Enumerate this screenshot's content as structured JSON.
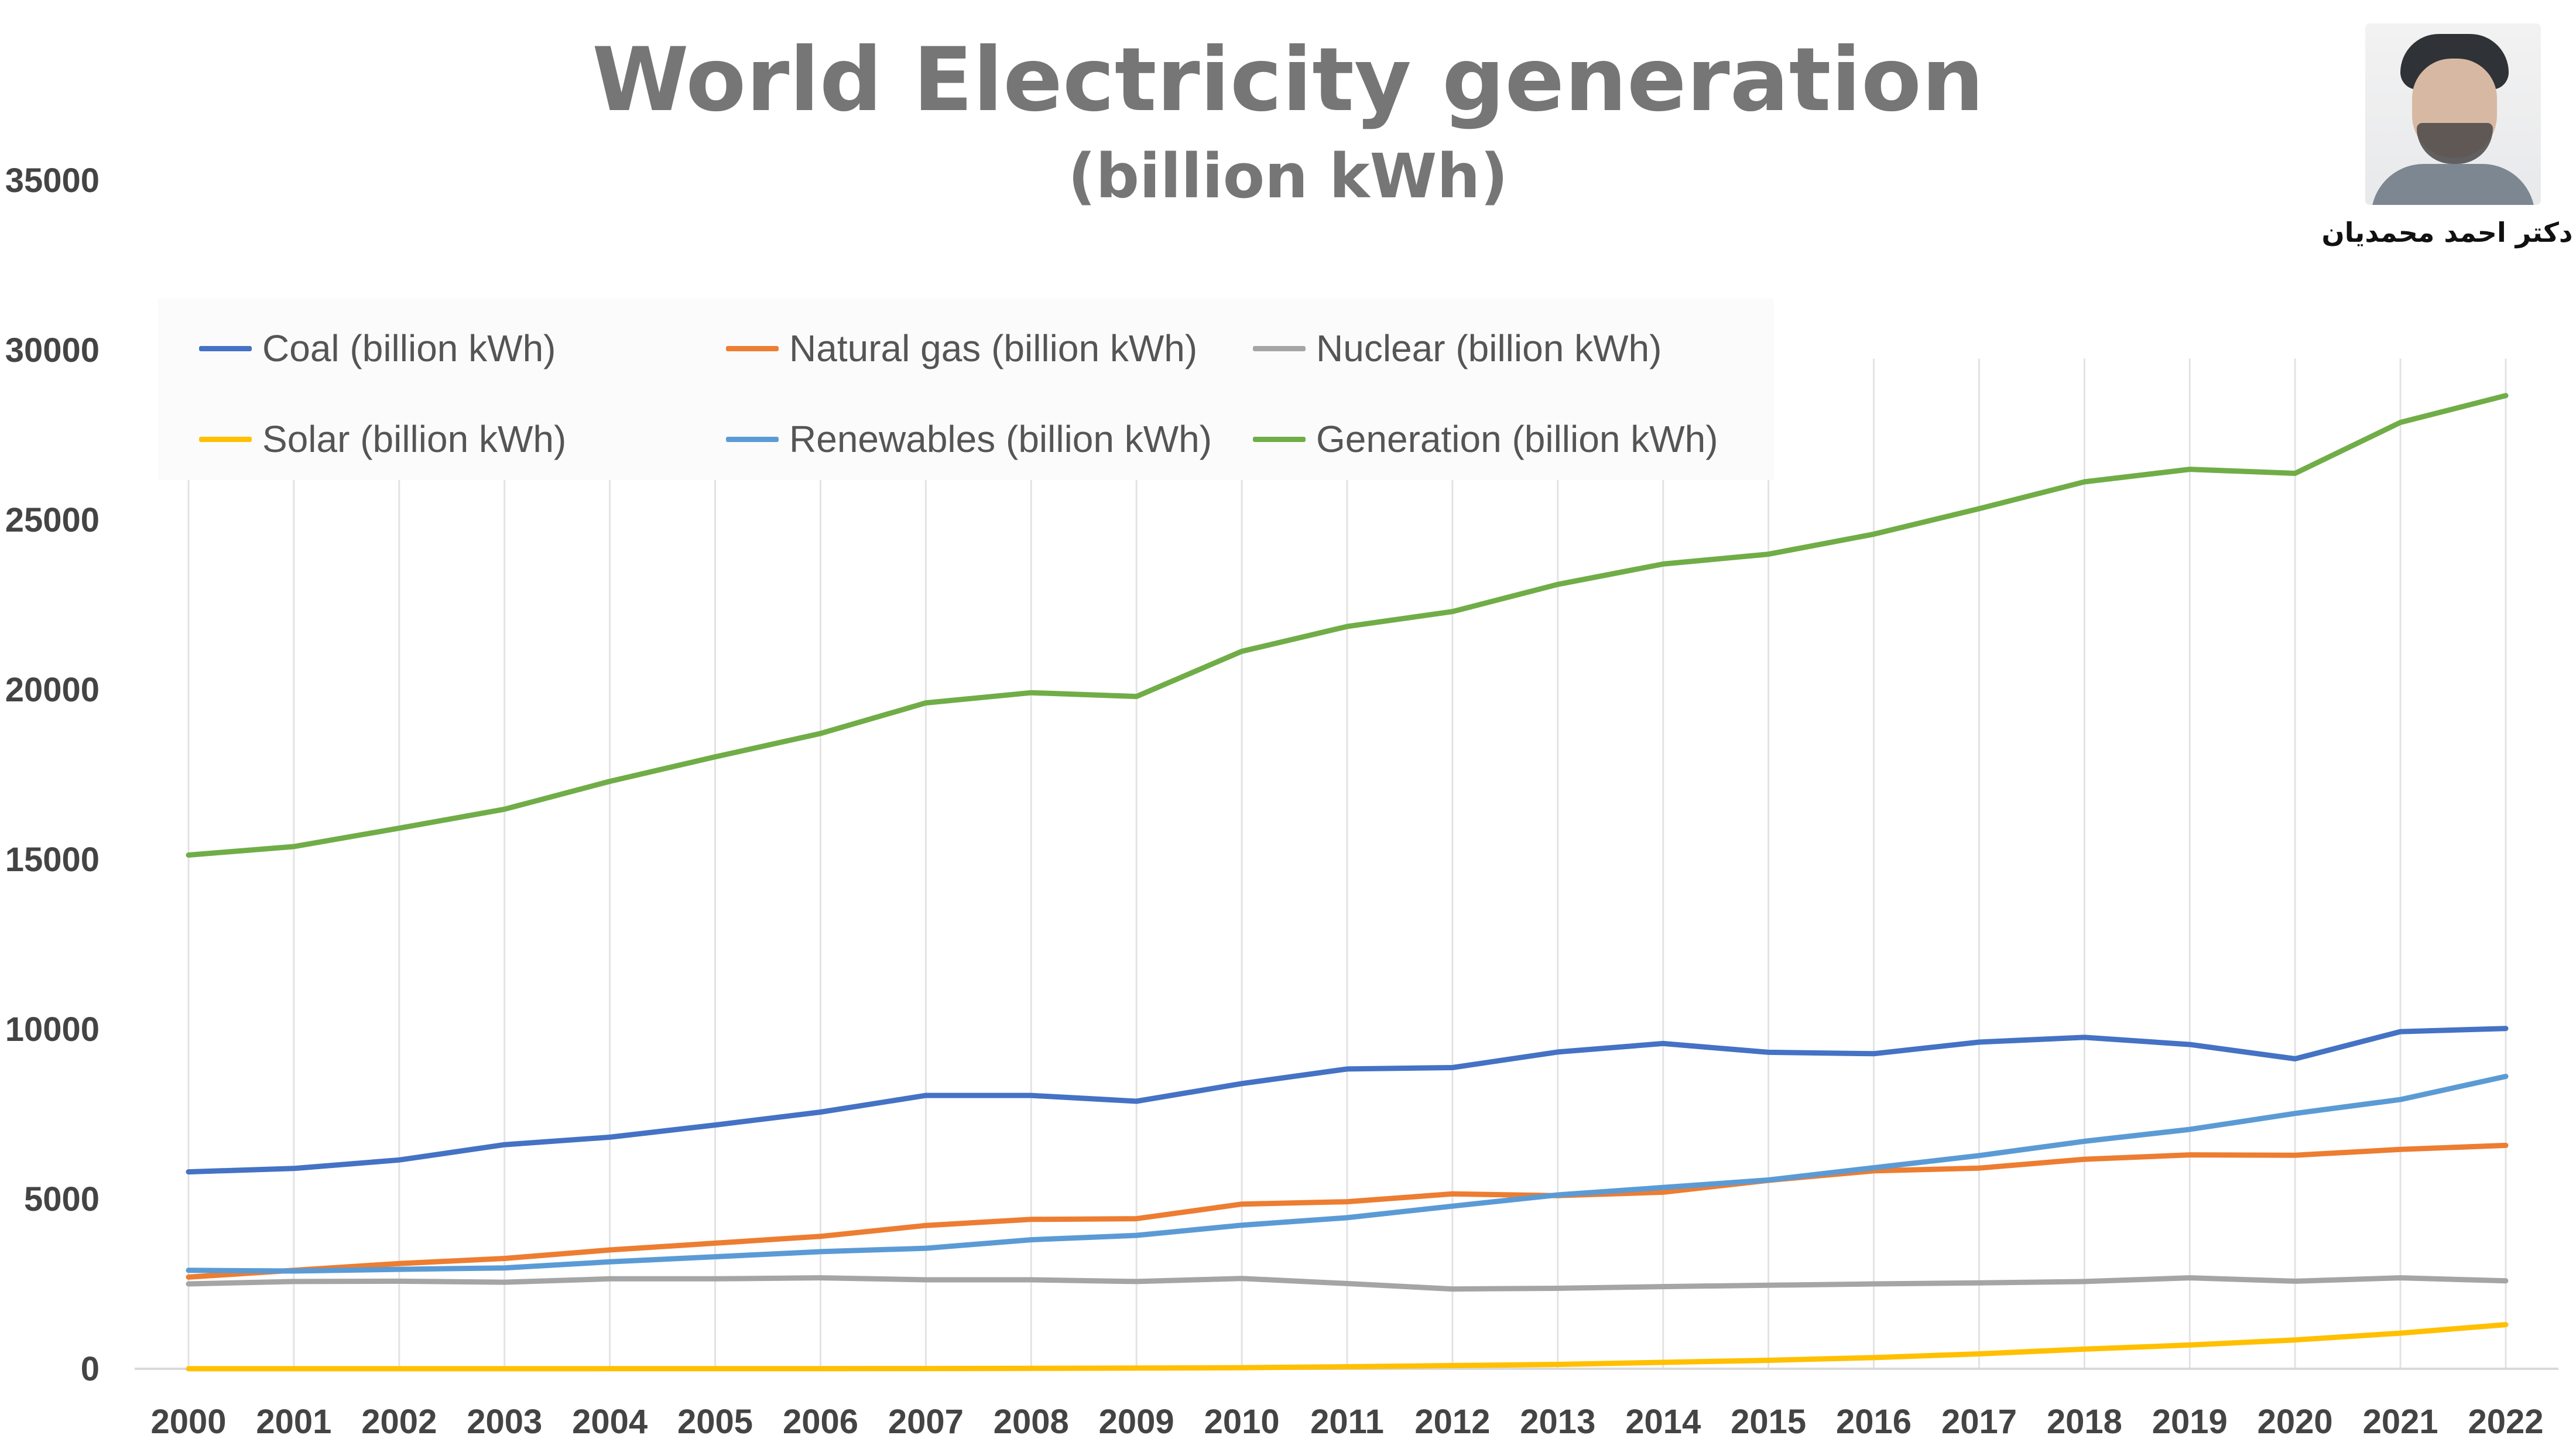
{
  "chart_data": {
    "type": "line",
    "title": "World Electricity generation",
    "subtitle": "(billion kWh)",
    "xlabel": "",
    "ylabel": "",
    "x": [
      "2000",
      "2001",
      "2002",
      "2003",
      "2004",
      "2005",
      "2006",
      "2007",
      "2008",
      "2009",
      "2010",
      "2011",
      "2012",
      "2013",
      "2014",
      "2015",
      "2016",
      "2017",
      "2018",
      "2019",
      "2020",
      "2021",
      "2022"
    ],
    "ylim": [
      0,
      35000
    ],
    "yticks": [
      0,
      5000,
      10000,
      15000,
      20000,
      25000,
      30000,
      35000
    ],
    "grid": "vertical",
    "legend_position": "top-left",
    "series": [
      {
        "name": "Coal (billion kWh)",
        "color": "#4472c4",
        "values": [
          5800,
          5900,
          6150,
          6600,
          6820,
          7180,
          7560,
          8050,
          8050,
          7880,
          8400,
          8830,
          8870,
          9330,
          9580,
          9320,
          9280,
          9620,
          9760,
          9550,
          9130,
          9930,
          10020
        ]
      },
      {
        "name": "Natural gas (billion kWh)",
        "color": "#ed7d31",
        "values": [
          2700,
          2900,
          3100,
          3250,
          3500,
          3700,
          3900,
          4220,
          4400,
          4420,
          4850,
          4920,
          5150,
          5100,
          5200,
          5550,
          5830,
          5910,
          6170,
          6300,
          6290,
          6460,
          6580
        ]
      },
      {
        "name": "Nuclear (billion kWh)",
        "color": "#a5a5a5",
        "values": [
          2500,
          2570,
          2580,
          2550,
          2650,
          2650,
          2680,
          2620,
          2620,
          2570,
          2660,
          2510,
          2350,
          2370,
          2420,
          2460,
          2500,
          2530,
          2570,
          2680,
          2580,
          2680,
          2590
        ]
      },
      {
        "name": "Solar (billion kWh)",
        "color": "#ffc000",
        "values": [
          1,
          1,
          2,
          2,
          3,
          4,
          5,
          7,
          12,
          20,
          32,
          60,
          95,
          130,
          190,
          250,
          330,
          440,
          580,
          700,
          850,
          1050,
          1300
        ]
      },
      {
        "name": "Renewables (billion kWh)",
        "color": "#5b9bd5",
        "values": [
          2900,
          2880,
          2930,
          2970,
          3150,
          3300,
          3450,
          3550,
          3800,
          3930,
          4230,
          4450,
          4790,
          5120,
          5340,
          5560,
          5920,
          6280,
          6700,
          7050,
          7520,
          7930,
          8610
        ]
      },
      {
        "name": "Generation (billion kWh)",
        "color": "#70ad47",
        "values": [
          15130,
          15380,
          15920,
          16480,
          17300,
          18020,
          18710,
          19610,
          19910,
          19800,
          21130,
          21860,
          22300,
          23100,
          23700,
          23990,
          24580,
          25330,
          26120,
          26490,
          26370,
          27870,
          28660
        ]
      }
    ]
  },
  "author": {
    "name": "دکتر احمد محمدیان",
    "photo_icon": "portrait-photo"
  }
}
